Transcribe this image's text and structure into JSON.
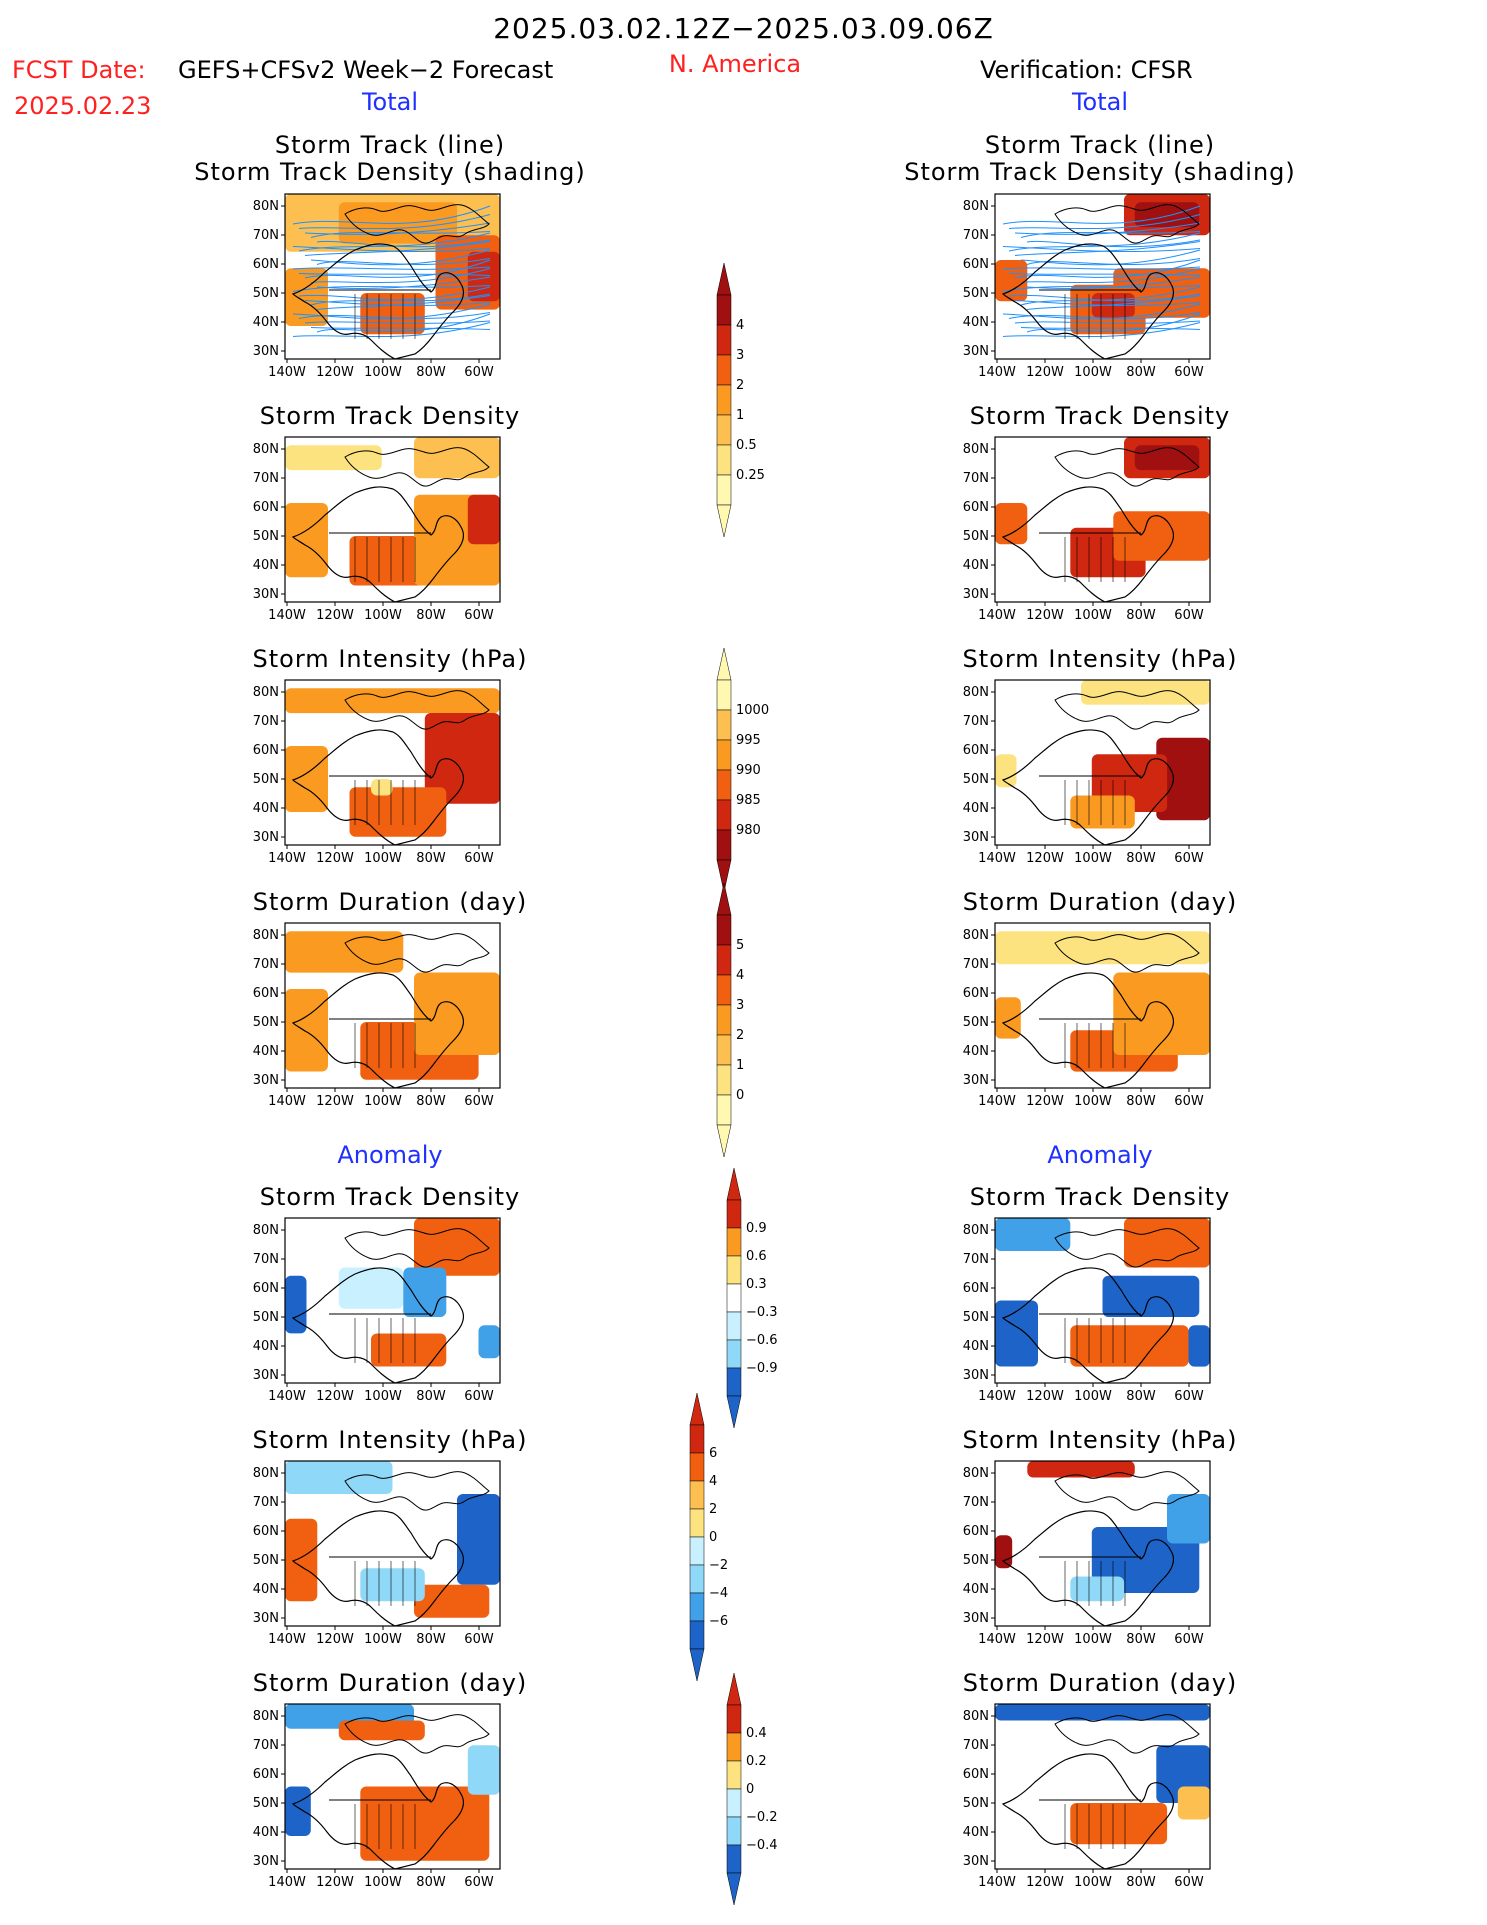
{
  "header": {
    "period": "2025.03.02.12Z−2025.03.09.06Z",
    "region": "N. America",
    "fcst_date_label": "FCST Date: ",
    "model": "GEFS+CFSv2 Week−2 Forecast",
    "fcst_date": "2025.02.23",
    "verification": "Verification: CFSR"
  },
  "sections": {
    "total": "Total",
    "anomaly": "Anomaly"
  },
  "axes": {
    "lat_labels": [
      "80N",
      "70N",
      "60N",
      "50N",
      "40N",
      "30N"
    ],
    "lon_labels": [
      "140W",
      "120W",
      "100W",
      "80W",
      "60W"
    ]
  },
  "panel_titles": {
    "track_line_1": "Storm Track (line)",
    "track_line_2": "Storm Track Density (shading)",
    "density": "Storm Track Density",
    "intensity": "Storm Intensity (hPa)",
    "duration": "Storm Duration (day)"
  },
  "colorbars": {
    "density_total": [
      "4",
      "3",
      "2",
      "1",
      "0.5",
      "0.25"
    ],
    "intensity_total": [
      "1000",
      "995",
      "990",
      "985",
      "980"
    ],
    "duration_total": [
      "5",
      "4",
      "3",
      "2",
      "1",
      "0"
    ],
    "density_anom": [
      "0.9",
      "0.6",
      "0.3",
      "−0.3",
      "−0.6",
      "−0.9"
    ],
    "intensity_anom": [
      "6",
      "4",
      "2",
      "0",
      "−2",
      "−4",
      "−6"
    ],
    "duration_anom": [
      "0.4",
      "0.2",
      "0",
      "−0.2",
      "−0.4"
    ]
  },
  "colors": {
    "warm": [
      "#fff8b0",
      "#fde380",
      "#fdc050",
      "#fb9a20",
      "#f06010",
      "#d02810",
      "#a01010"
    ],
    "cold": [
      "#c8f0ff",
      "#90d8f8",
      "#40a0e8",
      "#1e64c8"
    ],
    "track_lines": "#1e90ff"
  }
}
